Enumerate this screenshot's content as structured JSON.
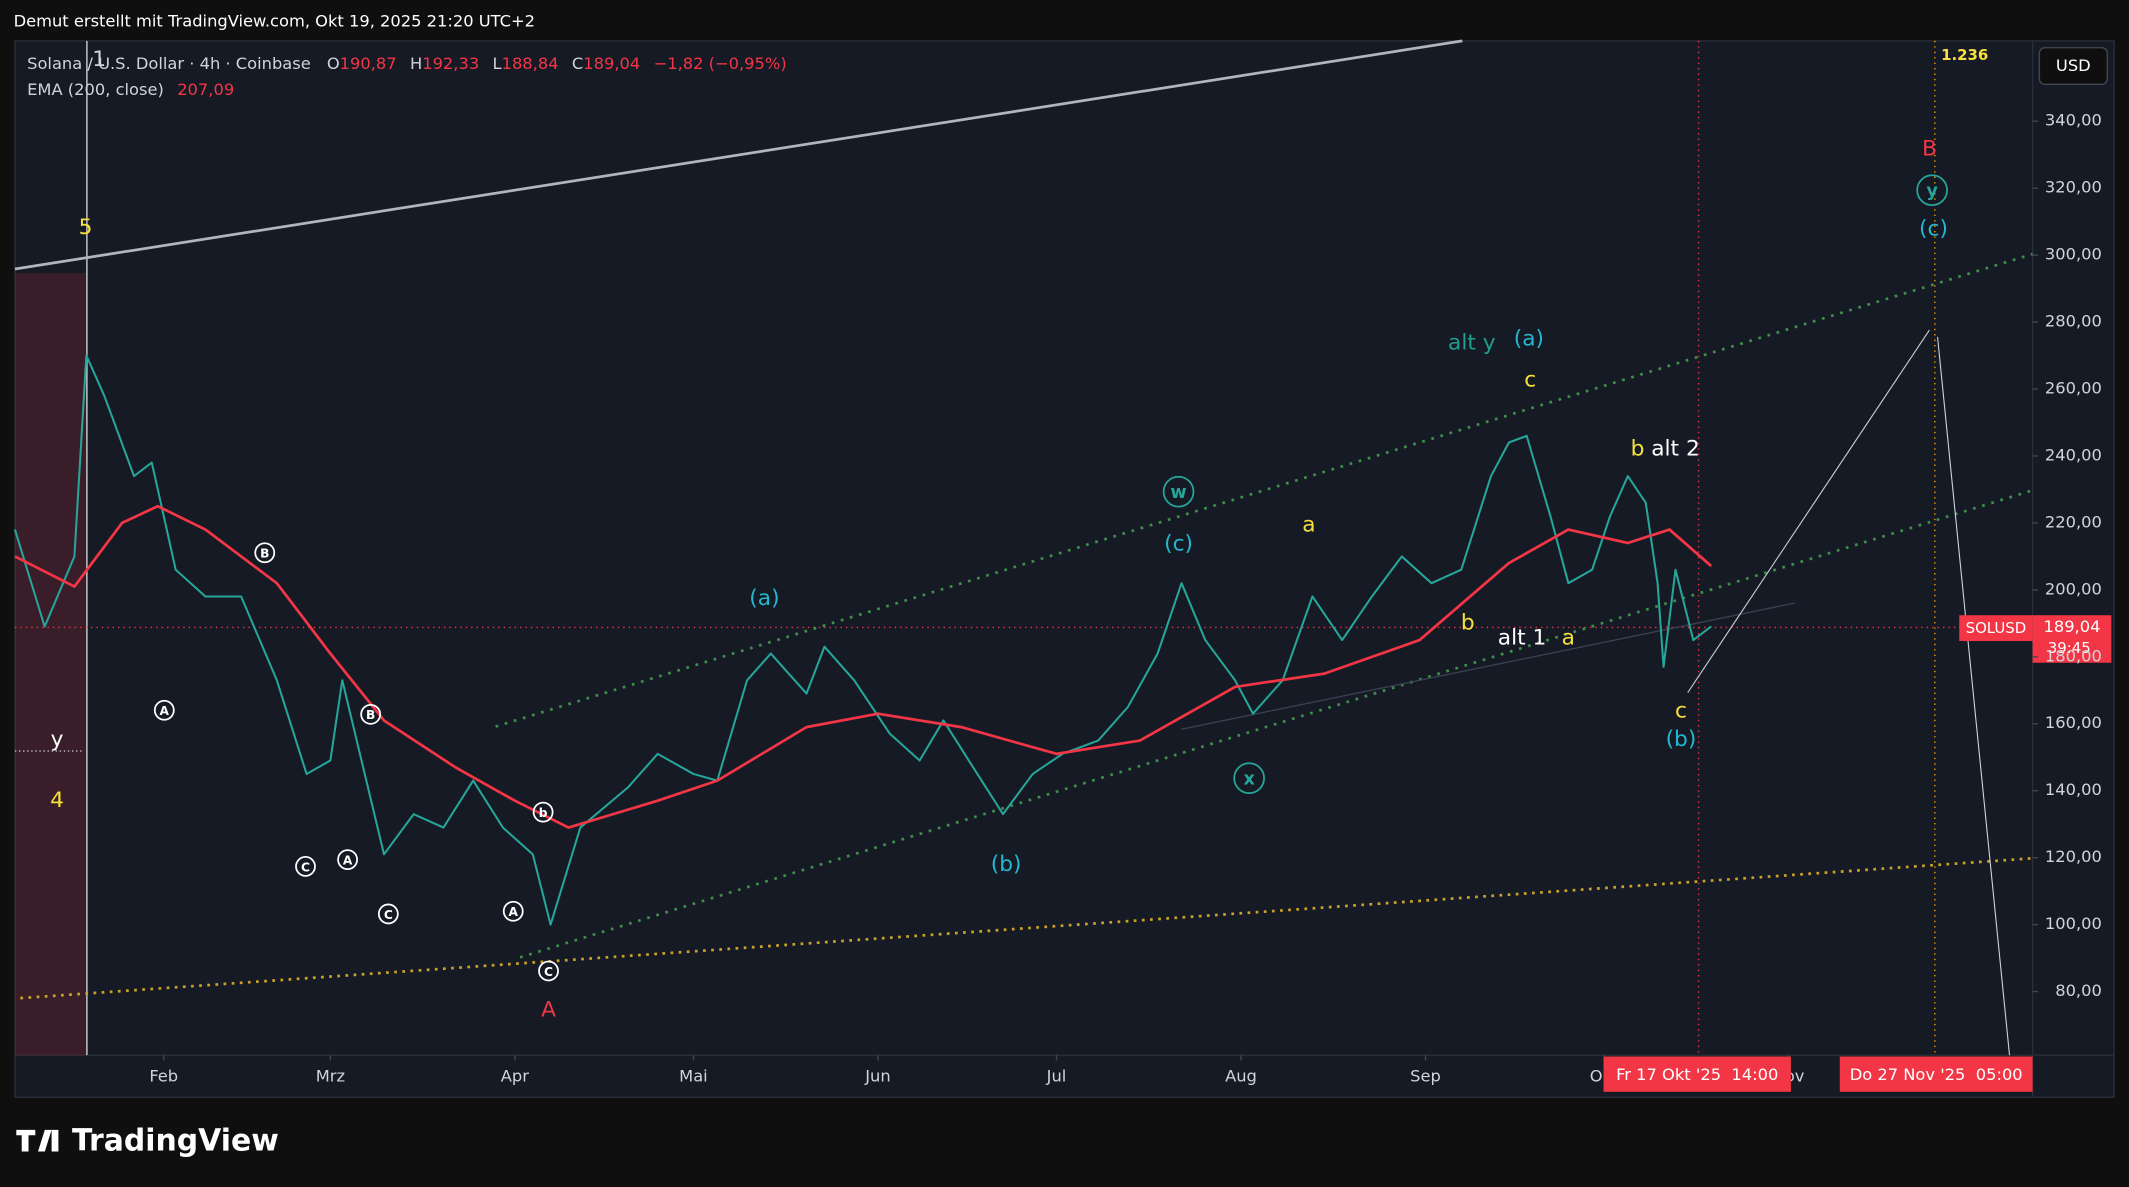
{
  "header": "Demut erstellt mit TradingView.com, Okt 19, 2025 21:20 UTC+2",
  "brand": "TradingView",
  "chart_data": {
    "type": "line",
    "title": "Solana / U.S. Dollar · 4h · Coinbase",
    "ohlc": [
      {
        "label": "O",
        "value": "190,87"
      },
      {
        "label": "H",
        "value": "192,33"
      },
      {
        "label": "L",
        "value": "188,84"
      },
      {
        "label": "C",
        "value": "189,04"
      }
    ],
    "change": "−1,82 (−0,95%)",
    "indicator_value": "207,09",
    "currency": "USD",
    "last_price_label": "189,04",
    "countdown": "39:45",
    "fib_label": "1.236",
    "date_labels": [
      "Fr 17 Okt '25  14:00",
      "Do 27 Nov '25  05:00"
    ],
    "series": [
      {
        "name": "SOLUSD",
        "color": "#26a69a",
        "x": [
          7,
          12,
          17,
          19,
          22,
          27,
          30,
          34,
          39,
          45,
          51,
          56,
          60,
          62,
          69,
          74,
          79,
          84,
          89,
          94,
          97,
          102,
          110,
          115,
          121,
          125,
          130,
          134,
          140,
          143,
          148,
          154,
          159,
          163,
          168,
          173,
          178,
          183,
          189,
          194,
          199,
          203,
          207,
          212,
          215,
          220,
          225,
          230,
          235,
          240,
          245,
          250,
          255,
          258,
          261,
          265,
          268,
          272,
          275,
          278,
          281,
          283,
          284,
          286,
          289,
          292
        ],
        "values": [
          218,
          189,
          210,
          270,
          258,
          234,
          238,
          206,
          198,
          198,
          173,
          145,
          149,
          173,
          121,
          133,
          129,
          143,
          129,
          121,
          100,
          129,
          141,
          151,
          145,
          143,
          173,
          181,
          169,
          183,
          173,
          157,
          149,
          161,
          147,
          133,
          145,
          151,
          155,
          165,
          181,
          202,
          185,
          173,
          163,
          173,
          198,
          185,
          198,
          210,
          202,
          206,
          234,
          244,
          246,
          222,
          202,
          206,
          222,
          234,
          226,
          202,
          177,
          206,
          185,
          189.04
        ]
      },
      {
        "name": "EMA (200, close)",
        "color": "#f23645",
        "x": [
          7,
          17,
          25,
          31,
          39,
          51,
          60,
          69,
          81,
          91,
          100,
          115,
          125,
          140,
          152,
          166,
          182,
          196,
          212,
          227,
          243,
          258,
          268,
          278,
          285,
          292
        ],
        "values": [
          210,
          201,
          220,
          225,
          218,
          202,
          181,
          161,
          147,
          137,
          129,
          137,
          143,
          159,
          163,
          159,
          151,
          155,
          171,
          175,
          185,
          208,
          218,
          214,
          218,
          207.09
        ]
      }
    ],
    "xlim": [
      7,
      346
    ],
    "xticks": [
      {
        "value": 32,
        "label": "Feb"
      },
      {
        "value": 60,
        "label": "Mrz"
      },
      {
        "value": 91,
        "label": "Apr"
      },
      {
        "value": 121,
        "label": "Mai"
      },
      {
        "value": 152,
        "label": "Jun"
      },
      {
        "value": 182,
        "label": "Jul"
      },
      {
        "value": 213,
        "label": "Aug"
      },
      {
        "value": 244,
        "label": "Sep"
      },
      {
        "value": 274,
        "label": "Okt"
      },
      {
        "value": 305,
        "label": "Nov"
      }
    ],
    "ylim": [
      61,
      364
    ],
    "yticks": [
      {
        "value": 80,
        "label": "80,00"
      },
      {
        "value": 100,
        "label": "100,00"
      },
      {
        "value": 120,
        "label": "120,00"
      },
      {
        "value": 140,
        "label": "140,00"
      },
      {
        "value": 160,
        "label": "160,00"
      },
      {
        "value": 180,
        "label": "180,00"
      },
      {
        "value": 200,
        "label": "200,00"
      },
      {
        "value": 220,
        "label": "220,00"
      },
      {
        "value": 240,
        "label": "240,00"
      },
      {
        "value": 260,
        "label": "260,00"
      },
      {
        "value": 280,
        "label": "280,00"
      },
      {
        "value": 300,
        "label": "300,00"
      },
      {
        "value": 320,
        "label": "320,00"
      },
      {
        "value": 340,
        "label": "340,00"
      }
    ],
    "grid": false,
    "annotations": [
      {
        "text": "5",
        "color": "#f7e03b"
      },
      {
        "text": "1",
        "color": "#d1d4dc"
      },
      {
        "text": "y",
        "color": "#ffffff"
      },
      {
        "text": "4",
        "color": "#f7e03b"
      },
      {
        "text": "B",
        "color": "#ffffff",
        "circled": true
      },
      {
        "text": "A",
        "color": "#ffffff",
        "circled": true
      },
      {
        "text": "B",
        "color": "#ffffff",
        "circled": true
      },
      {
        "text": "C",
        "color": "#ffffff",
        "circled": true
      },
      {
        "text": "A",
        "color": "#ffffff",
        "circled": true
      },
      {
        "text": "C",
        "color": "#ffffff",
        "circled": true
      },
      {
        "text": "b",
        "color": "#ffffff",
        "circled": true
      },
      {
        "text": "A",
        "color": "#ffffff",
        "circled": true
      },
      {
        "text": "C",
        "color": "#ffffff",
        "circled": true
      },
      {
        "text": "A",
        "color": "#f23645"
      },
      {
        "text": "(a)",
        "color": "#22b8cf"
      },
      {
        "text": "(b)",
        "color": "#22b8cf"
      },
      {
        "text": "(c)",
        "color": "#22b8cf"
      },
      {
        "text": "w",
        "color": "#26a69a",
        "circled": true
      },
      {
        "text": "x",
        "color": "#26a69a",
        "circled": true
      },
      {
        "text": "a",
        "color": "#f7e03b"
      },
      {
        "text": "b",
        "color": "#f7e03b"
      },
      {
        "text": "alt 1",
        "color": "#ffffff"
      },
      {
        "text": "a",
        "color": "#f7e03b"
      },
      {
        "text": "alt y",
        "color": "#1e9e8c"
      },
      {
        "text": "(a)",
        "color": "#22b8cf"
      },
      {
        "text": "c",
        "color": "#f7e03b"
      },
      {
        "text": "b",
        "color": "#f7e03b"
      },
      {
        "text": "alt 2",
        "color": "#ffffff"
      },
      {
        "text": "c",
        "color": "#f7e03b"
      },
      {
        "text": "(b)",
        "color": "#22b8cf"
      },
      {
        "text": "B",
        "color": "#f23645"
      },
      {
        "text": "y",
        "color": "#26a69a",
        "circled": true
      },
      {
        "text": "(c)",
        "color": "#22b8cf"
      }
    ]
  }
}
